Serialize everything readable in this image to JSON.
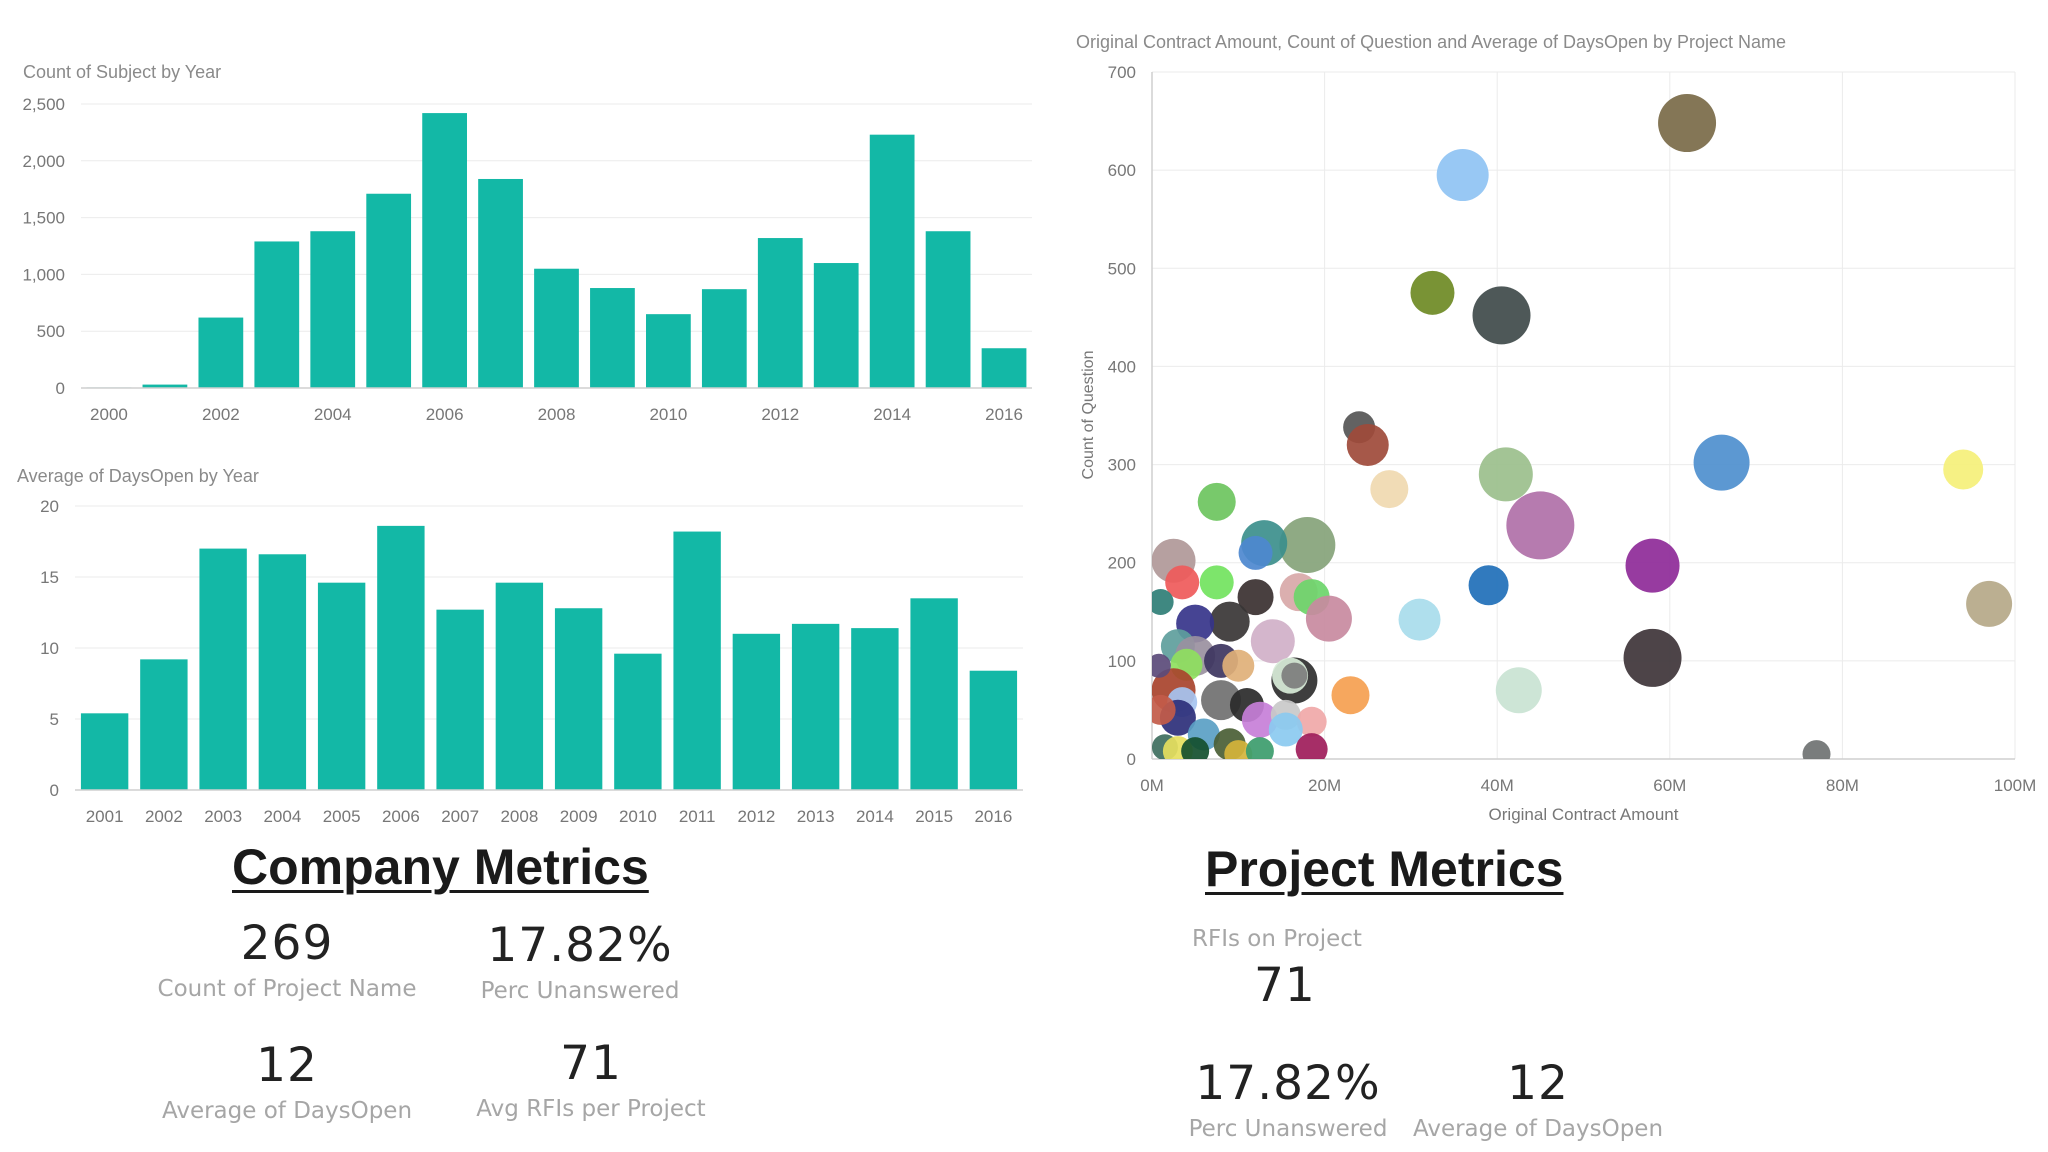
{
  "chart_data": [
    {
      "id": "subjects-by-year",
      "type": "bar",
      "title": "Count of Subject by Year",
      "xlabel": "",
      "ylabel": "",
      "color": "#13B8A6",
      "categories": [
        "2000",
        "2001",
        "2002",
        "2003",
        "2004",
        "2005",
        "2006",
        "2007",
        "2008",
        "2009",
        "2010",
        "2011",
        "2012",
        "2013",
        "2014",
        "2015",
        "2016"
      ],
      "tick_labels": [
        "2000",
        "2002",
        "2004",
        "2006",
        "2008",
        "2010",
        "2012",
        "2014",
        "2016"
      ],
      "values": [
        5,
        30,
        620,
        1290,
        1380,
        1710,
        2420,
        1840,
        1050,
        880,
        650,
        870,
        1320,
        1100,
        2230,
        1380,
        350
      ],
      "ylim": [
        0,
        2500
      ],
      "yticks": [
        "0",
        "500",
        "1,000",
        "1,500",
        "2,000",
        "2,500"
      ],
      "ytick_values": [
        0,
        500,
        1000,
        1500,
        2000,
        2500
      ]
    },
    {
      "id": "daysopen-by-year",
      "type": "bar",
      "title": "Average of DaysOpen by Year",
      "xlabel": "",
      "ylabel": "",
      "color": "#13B8A6",
      "categories": [
        "2001",
        "2002",
        "2003",
        "2004",
        "2005",
        "2006",
        "2007",
        "2008",
        "2009",
        "2010",
        "2011",
        "2012",
        "2013",
        "2014",
        "2015",
        "2016"
      ],
      "values": [
        5.4,
        9.2,
        17.0,
        16.6,
        14.6,
        18.6,
        12.7,
        14.6,
        12.8,
        9.6,
        18.2,
        11.0,
        11.7,
        11.4,
        13.5,
        8.4
      ],
      "ylim": [
        0,
        20
      ],
      "yticks": [
        "0",
        "5",
        "10",
        "15",
        "20"
      ],
      "ytick_values": [
        0,
        5,
        10,
        15,
        20
      ]
    },
    {
      "id": "project-scatter",
      "type": "scatter",
      "title": "Original Contract Amount, Count of Question and Average of DaysOpen by Project Name",
      "xlabel": "Original Contract Amount",
      "ylabel": "Count of Question",
      "xlim": [
        0,
        100
      ],
      "ylim": [
        0,
        700
      ],
      "xunit": "M",
      "xticks": [
        "0M",
        "20M",
        "40M",
        "60M",
        "80M",
        "100M"
      ],
      "xtick_values": [
        0,
        20,
        40,
        60,
        80,
        100
      ],
      "yticks": [
        "0",
        "100",
        "200",
        "300",
        "400",
        "500",
        "600",
        "700"
      ],
      "ytick_values": [
        0,
        100,
        200,
        300,
        400,
        500,
        600,
        700
      ],
      "points": [
        {
          "x": 62,
          "y": 648,
          "size": 29,
          "color": "#7A6A48"
        },
        {
          "x": 36,
          "y": 595,
          "size": 26,
          "color": "#8FC3F3"
        },
        {
          "x": 32.5,
          "y": 475,
          "size": 22,
          "color": "#6E8A24"
        },
        {
          "x": 40.5,
          "y": 452,
          "size": 29,
          "color": "#3F4A4A"
        },
        {
          "x": 24,
          "y": 338,
          "size": 16,
          "color": "#555555"
        },
        {
          "x": 25,
          "y": 320,
          "size": 21,
          "color": "#9E4A3A"
        },
        {
          "x": 27.5,
          "y": 275,
          "size": 19,
          "color": "#F0D9B0"
        },
        {
          "x": 41,
          "y": 290,
          "size": 27,
          "color": "#9BBF8C"
        },
        {
          "x": 45,
          "y": 238,
          "size": 34,
          "color": "#B070A8"
        },
        {
          "x": 66,
          "y": 302,
          "size": 28,
          "color": "#4E8FCE"
        },
        {
          "x": 94,
          "y": 295,
          "size": 20,
          "color": "#F5F07A"
        },
        {
          "x": 97,
          "y": 158,
          "size": 23,
          "color": "#B5A888"
        },
        {
          "x": 58,
          "y": 197,
          "size": 27,
          "color": "#8E2A98"
        },
        {
          "x": 58,
          "y": 103,
          "size": 29,
          "color": "#3E3438"
        },
        {
          "x": 39,
          "y": 177,
          "size": 20,
          "color": "#1F6FB8"
        },
        {
          "x": 31,
          "y": 142,
          "size": 21,
          "color": "#A8DCEC"
        },
        {
          "x": 42.5,
          "y": 70,
          "size": 23,
          "color": "#C9E3D3"
        },
        {
          "x": 23,
          "y": 65,
          "size": 19,
          "color": "#F5A050"
        },
        {
          "x": 77,
          "y": 5,
          "size": 14,
          "color": "#6F7272"
        },
        {
          "x": 7.5,
          "y": 262,
          "size": 19,
          "color": "#6DC45E"
        },
        {
          "x": 18,
          "y": 218,
          "size": 28,
          "color": "#86A37A"
        },
        {
          "x": 13,
          "y": 220,
          "size": 23,
          "color": "#3C8F8C"
        },
        {
          "x": 12,
          "y": 210,
          "size": 17,
          "color": "#4D88CF"
        },
        {
          "x": 2.5,
          "y": 202,
          "size": 22,
          "color": "#B09898"
        },
        {
          "x": 3.5,
          "y": 180,
          "size": 17,
          "color": "#EF5A5A"
        },
        {
          "x": 7.5,
          "y": 180,
          "size": 17,
          "color": "#72E35E"
        },
        {
          "x": 12,
          "y": 165,
          "size": 18,
          "color": "#3A3030"
        },
        {
          "x": 17,
          "y": 170,
          "size": 19,
          "color": "#D8A8A8"
        },
        {
          "x": 18.5,
          "y": 165,
          "size": 18,
          "color": "#6CD56A"
        },
        {
          "x": 20.5,
          "y": 143,
          "size": 23,
          "color": "#C88AA0"
        },
        {
          "x": 9,
          "y": 140,
          "size": 20,
          "color": "#383535"
        },
        {
          "x": 14,
          "y": 120,
          "size": 22,
          "color": "#D0B0C8"
        },
        {
          "x": 5,
          "y": 138,
          "size": 19,
          "color": "#36348A"
        },
        {
          "x": 3,
          "y": 115,
          "size": 17,
          "color": "#5E9E9C"
        },
        {
          "x": 5,
          "y": 105,
          "size": 20,
          "color": "#9A90A0"
        },
        {
          "x": 8,
          "y": 100,
          "size": 17,
          "color": "#3D3560"
        },
        {
          "x": 10,
          "y": 95,
          "size": 16,
          "color": "#E0B078"
        },
        {
          "x": 4,
          "y": 96,
          "size": 16,
          "color": "#8EDF5E"
        },
        {
          "x": 16.5,
          "y": 80,
          "size": 23,
          "color": "#2E2E2E"
        },
        {
          "x": 16,
          "y": 85,
          "size": 18,
          "color": "#D8EBD8"
        },
        {
          "x": 16.5,
          "y": 85,
          "size": 13,
          "color": "#7D7D7D"
        },
        {
          "x": 2.5,
          "y": 70,
          "size": 22,
          "color": "#A8432C"
        },
        {
          "x": 8,
          "y": 60,
          "size": 20,
          "color": "#707070"
        },
        {
          "x": 11,
          "y": 55,
          "size": 17,
          "color": "#2A2A2A"
        },
        {
          "x": 3.5,
          "y": 58,
          "size": 15,
          "color": "#A6C4F0"
        },
        {
          "x": 12.5,
          "y": 40,
          "size": 18,
          "color": "#C77FD8"
        },
        {
          "x": 15.5,
          "y": 45,
          "size": 15,
          "color": "#C9C9C9"
        },
        {
          "x": 18.5,
          "y": 38,
          "size": 15,
          "color": "#F0A8A8"
        },
        {
          "x": 15.5,
          "y": 30,
          "size": 17,
          "color": "#8BCAF0"
        },
        {
          "x": 3,
          "y": 42,
          "size": 18,
          "color": "#2C2F7A"
        },
        {
          "x": 6,
          "y": 25,
          "size": 16,
          "color": "#5AA0C4"
        },
        {
          "x": 9,
          "y": 15,
          "size": 16,
          "color": "#4A5E35"
        },
        {
          "x": 1.5,
          "y": 12,
          "size": 13,
          "color": "#3E6E5E"
        },
        {
          "x": 3,
          "y": 8,
          "size": 15,
          "color": "#E6E05E"
        },
        {
          "x": 5,
          "y": 8,
          "size": 14,
          "color": "#134F2E"
        },
        {
          "x": 10,
          "y": 5,
          "size": 14,
          "color": "#D5B43B"
        },
        {
          "x": 12.5,
          "y": 8,
          "size": 14,
          "color": "#3C9C6C"
        },
        {
          "x": 1,
          "y": 160,
          "size": 13,
          "color": "#2F7E76"
        },
        {
          "x": 1,
          "y": 50,
          "size": 15,
          "color": "#C25B49"
        },
        {
          "x": 0.8,
          "y": 95,
          "size": 12,
          "color": "#5B4B7A"
        },
        {
          "x": 18.5,
          "y": 10,
          "size": 16,
          "color": "#9E1C5A"
        }
      ]
    }
  ],
  "company_metrics": {
    "title": "Company Metrics",
    "cards": [
      {
        "value": "269",
        "label": "Count of Project Name"
      },
      {
        "value": "17.82%",
        "label": "Perc Unanswered"
      },
      {
        "value": "12",
        "label": "Average of DaysOpen"
      },
      {
        "value": "71",
        "label": "Avg RFIs per Project"
      }
    ]
  },
  "project_metrics": {
    "title": "Project Metrics",
    "rfis_label": "RFIs on Project",
    "rfis_value": "71",
    "cards": [
      {
        "value": "17.82%",
        "label": "Perc Unanswered"
      },
      {
        "value": "12",
        "label": "Average of DaysOpen"
      }
    ]
  }
}
